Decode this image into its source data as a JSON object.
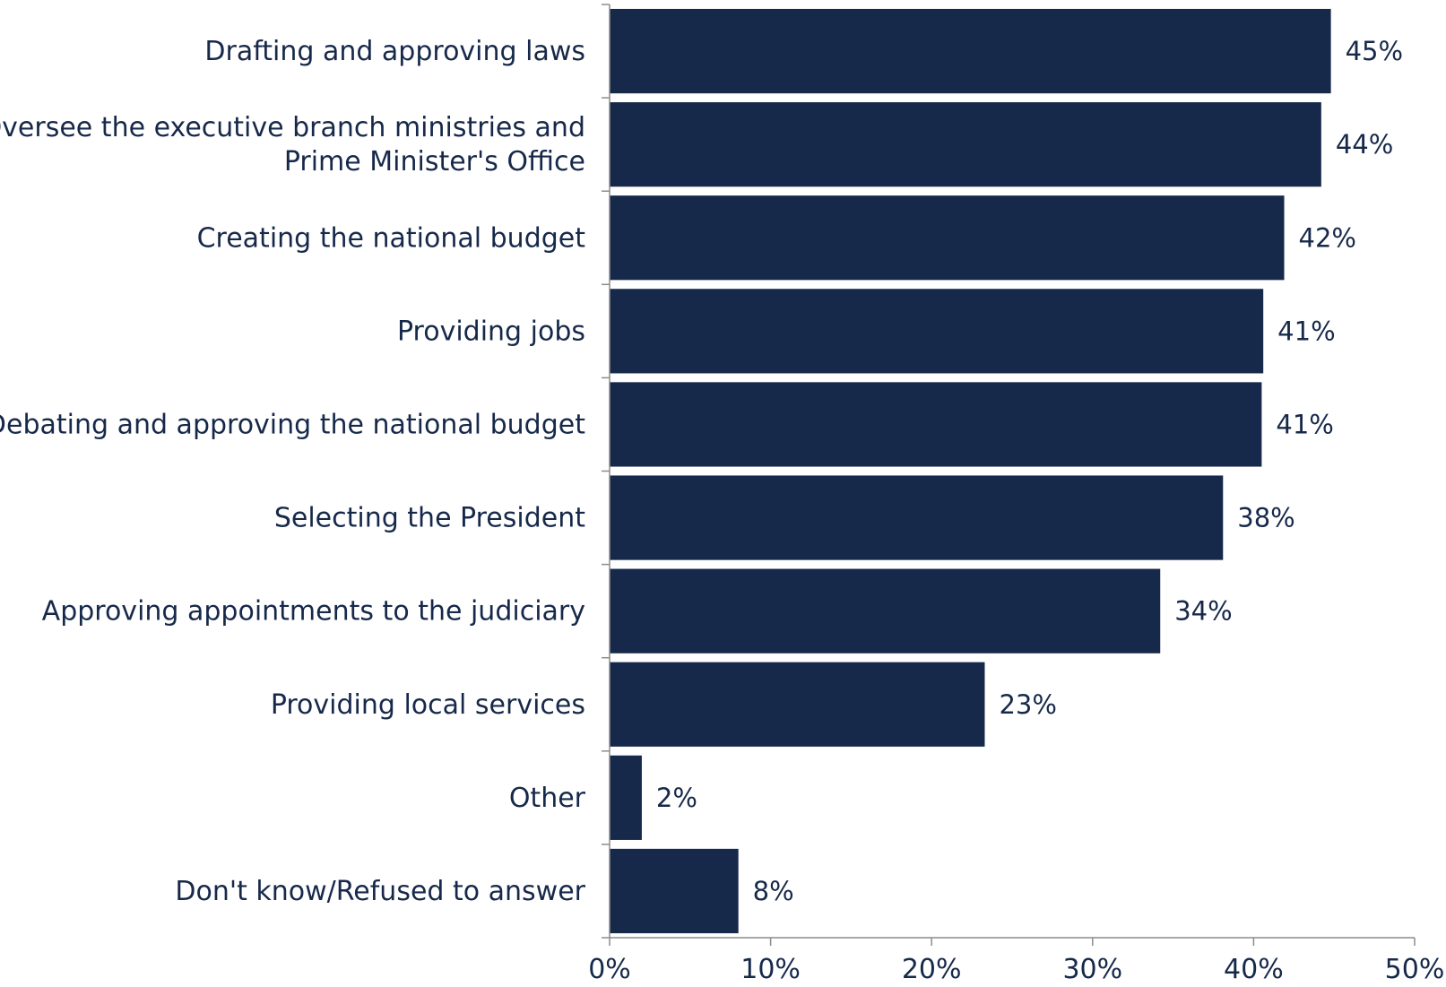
{
  "chart_data": {
    "type": "bar",
    "orientation": "horizontal",
    "categories": [
      [
        "Drafting and approving laws"
      ],
      [
        "Oversee the executive branch ministries and",
        "Prime Minister's Office"
      ],
      [
        "Creating the national budget"
      ],
      [
        "Providing jobs"
      ],
      [
        "Debating and approving the national budget"
      ],
      [
        "Selecting the President"
      ],
      [
        "Approving appointments to the judiciary"
      ],
      [
        "Providing local services"
      ],
      [
        "Other"
      ],
      [
        "Don't know/Refused to answer"
      ]
    ],
    "values": [
      44.8,
      44.2,
      41.9,
      40.6,
      40.5,
      38.1,
      34.2,
      23.3,
      2.0,
      8.0
    ],
    "data_labels": [
      "45%",
      "44%",
      "42%",
      "41%",
      "41%",
      "38%",
      "34%",
      "23%",
      "2%",
      "8%"
    ],
    "xlim": [
      0,
      50
    ],
    "xticks": [
      0,
      10,
      20,
      30,
      40,
      50
    ],
    "xtick_labels": [
      "0%",
      "10%",
      "20%",
      "30%",
      "40%",
      "50%"
    ],
    "title": "",
    "xlabel": "",
    "ylabel": "",
    "grid": false,
    "legend": "none",
    "colors": {
      "bar": "#17294a",
      "text": "#17294a",
      "axis": "#8c8c8c"
    }
  }
}
